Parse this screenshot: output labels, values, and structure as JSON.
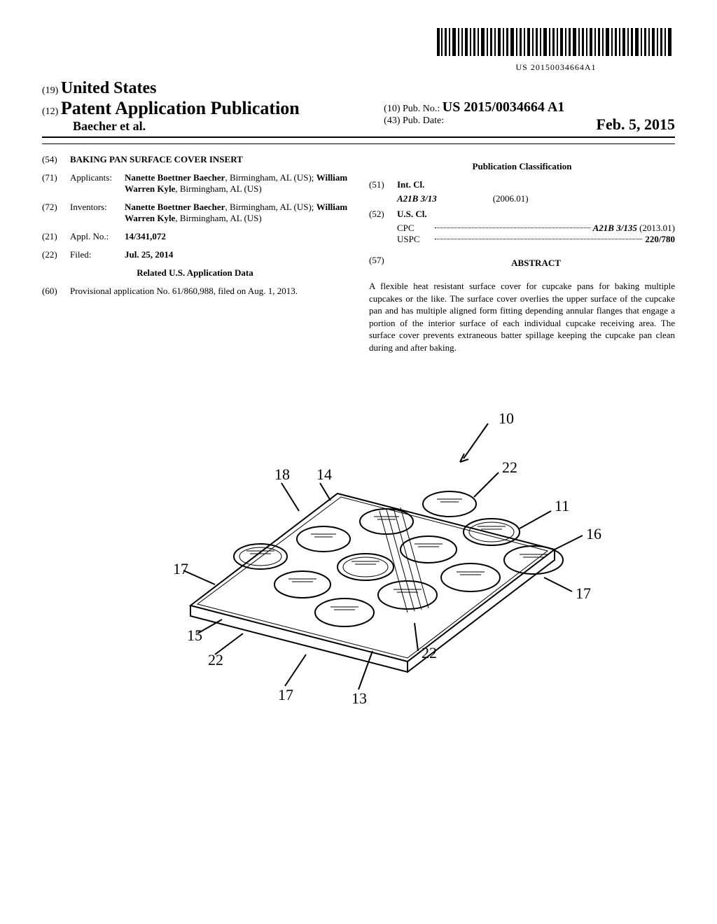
{
  "barcode_number": "US 20150034664A1",
  "header": {
    "code19": "(19)",
    "country": "United States",
    "code12": "(12)",
    "doc_type": "Patent Application Publication",
    "authors": "Baecher et al.",
    "code10": "(10)",
    "pub_no_label": "Pub. No.:",
    "pub_no": "US 2015/0034664 A1",
    "code43": "(43)",
    "pub_date_label": "Pub. Date:",
    "pub_date": "Feb. 5, 2015"
  },
  "left": {
    "f54": {
      "code": "(54)",
      "title": "BAKING PAN SURFACE COVER INSERT"
    },
    "f71": {
      "code": "(71)",
      "label": "Applicants:",
      "body_html": "<b>Nanette Boettner Baecher</b>, Birmingham, AL (US); <b>William Warren Kyle</b>, Birmingham, AL (US)"
    },
    "f72": {
      "code": "(72)",
      "label": "Inventors:",
      "body_html": "<b>Nanette Boettner Baecher</b>, Birmingham, AL (US); <b>William Warren Kyle</b>, Birmingham, AL (US)"
    },
    "f21": {
      "code": "(21)",
      "label": "Appl. No.:",
      "value": "14/341,072"
    },
    "f22": {
      "code": "(22)",
      "label": "Filed:",
      "value": "Jul. 25, 2014"
    },
    "related_heading": "Related U.S. Application Data",
    "f60": {
      "code": "(60)",
      "body": "Provisional application No. 61/860,988, filed on Aug. 1, 2013."
    }
  },
  "right": {
    "pub_class_heading": "Publication Classification",
    "f51": {
      "code": "(51)",
      "label": "Int. Cl.",
      "cls": "A21B 3/13",
      "ver": "(2006.01)"
    },
    "f52": {
      "code": "(52)",
      "label": "U.S. Cl.",
      "cpc_label": "CPC",
      "cpc_val": "A21B 3/135",
      "cpc_year": "(2013.01)",
      "uspc_label": "USPC",
      "uspc_val": "220/780"
    },
    "f57": {
      "code": "(57)",
      "heading": "ABSTRACT"
    },
    "abstract": "A flexible heat resistant surface cover for cupcake pans for baking multiple cupcakes or the like. The surface cover overlies the upper surface of the cupcake pan and has multiple aligned form fitting depending annular flanges that engage a portion of the interior surface of each individual cupcake receiving area. The surface cover prevents extraneous batter spillage keeping the cupcake pan clean during and after baking."
  },
  "figure": {
    "labels": [
      "10",
      "11",
      "13",
      "14",
      "15",
      "16",
      "17",
      "17",
      "17",
      "18",
      "22",
      "22",
      "22"
    ]
  }
}
